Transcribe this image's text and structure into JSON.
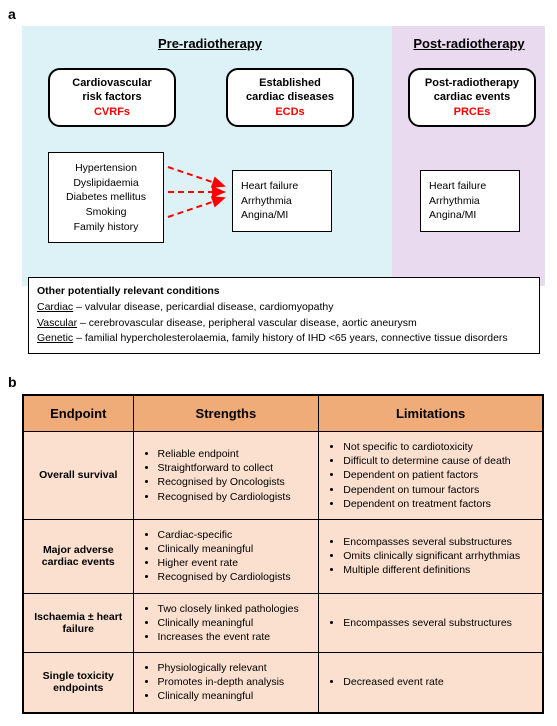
{
  "panel_a": {
    "label": "a",
    "pre_title": "Pre-radiotherapy",
    "post_title": "Post-radiotherapy",
    "header_boxes": {
      "cvrf": {
        "line1": "Cardiovascular",
        "line2": "risk factors",
        "abbr": "CVRFs"
      },
      "ecd": {
        "line1": "Established",
        "line2": "cardiac diseases",
        "abbr": "ECDs"
      },
      "prce": {
        "line1": "Post-radiotherapy",
        "line2": "cardiac events",
        "abbr": "PRCEs"
      }
    },
    "cvrf_items": [
      "Hypertension",
      "Dyslipidaemia",
      "Diabetes mellitus",
      "Smoking",
      "Family history"
    ],
    "ecd_items": [
      "Heart failure",
      "Arrhythmia",
      "Angina/MI"
    ],
    "prce_items": [
      "Heart failure",
      "Arrhythmia",
      "Angina/MI"
    ],
    "other": {
      "title": "Other potentially relevant conditions",
      "rows": [
        {
          "label": "Cardiac",
          "text": " – valvular disease, pericardial disease, cardiomyopathy"
        },
        {
          "label": "Vascular",
          "text": " – cerebrovascular disease, peripheral vascular disease, aortic aneurysm"
        },
        {
          "label": "Genetic",
          "text": " – familial hypercholesterolaemia, family history of IHD <65 years, connective tissue disorders"
        }
      ]
    },
    "colors": {
      "pre_bg": "#dcf2f6",
      "post_bg": "#e9daef",
      "arrow": "#ff0000"
    }
  },
  "panel_b": {
    "label": "b",
    "headers": [
      "Endpoint",
      "Strengths",
      "Limitations"
    ],
    "rows": [
      {
        "endpoint": "Overall survival",
        "strengths": [
          "Reliable endpoint",
          "Straightforward to collect",
          "Recognised by Oncologists",
          "Recognised by Cardiologists"
        ],
        "limitations": [
          "Not specific to cardiotoxicity",
          "Difficult to determine cause of death",
          "Dependent on patient factors",
          "Dependent on tumour factors",
          "Dependent on treatment factors"
        ]
      },
      {
        "endpoint": "Major adverse cardiac events",
        "strengths": [
          "Cardiac-specific",
          "Clinically meaningful",
          "Higher event rate",
          "Recognised by Cardiologists"
        ],
        "limitations": [
          "Encompasses several substructures",
          "Omits clinically significant arrhythmias",
          "Multiple different definitions"
        ]
      },
      {
        "endpoint": "Ischaemia ± heart failure",
        "strengths": [
          "Two closely linked pathologies",
          "Clinically meaningful",
          "Increases the event rate"
        ],
        "limitations": [
          "Encompasses several substructures"
        ]
      },
      {
        "endpoint": "Single toxicity endpoints",
        "strengths": [
          "Physiologically relevant",
          "Promotes in-depth analysis",
          "Clinically meaningful"
        ],
        "limitations": [
          "Decreased event rate"
        ]
      }
    ],
    "colors": {
      "header_bg": "#f0ac78",
      "cell_bg": "#fbe0cf"
    }
  }
}
